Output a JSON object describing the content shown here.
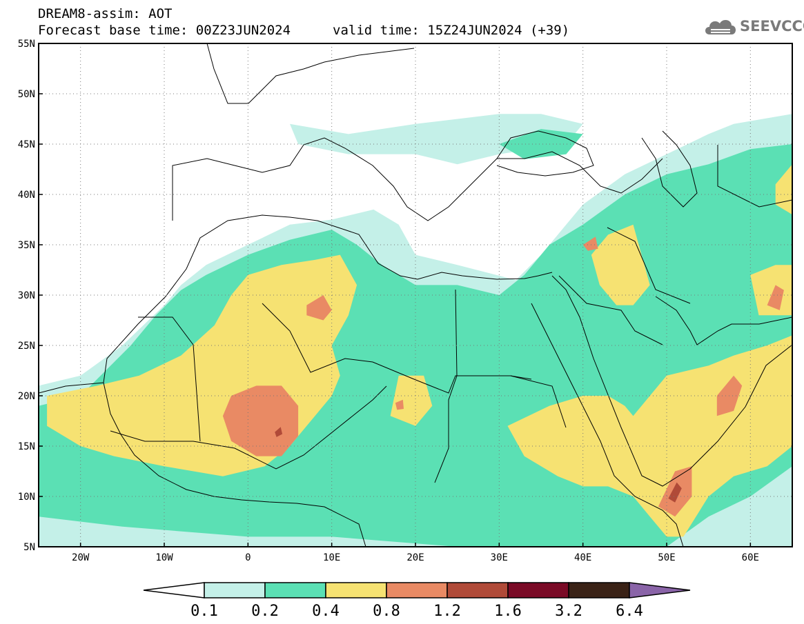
{
  "header": {
    "line1": "DREAM8-assim: AOT",
    "line2": "Forecast base time: 00Z23JUN2024",
    "valid": "valid time: 15Z24JUN2024 (+39)"
  },
  "logo": {
    "text": "SEEVCCC",
    "icon": "cloud-icon"
  },
  "map": {
    "lon_range": [
      -25,
      65
    ],
    "lat_range": [
      5,
      55
    ],
    "lat_ticks": [
      {
        "value": 55,
        "label": "55N"
      },
      {
        "value": 50,
        "label": "50N"
      },
      {
        "value": 45,
        "label": "45N"
      },
      {
        "value": 40,
        "label": "40N"
      },
      {
        "value": 35,
        "label": "35N"
      },
      {
        "value": 30,
        "label": "30N"
      },
      {
        "value": 25,
        "label": "25N"
      },
      {
        "value": 20,
        "label": "20N"
      },
      {
        "value": 15,
        "label": "15N"
      },
      {
        "value": 10,
        "label": "10N"
      },
      {
        "value": 5,
        "label": "5N"
      }
    ],
    "lon_ticks": [
      {
        "value": -20,
        "label": "20W"
      },
      {
        "value": -10,
        "label": "10W"
      },
      {
        "value": 0,
        "label": "0"
      },
      {
        "value": 10,
        "label": "10E"
      },
      {
        "value": 20,
        "label": "20E"
      },
      {
        "value": 30,
        "label": "30E"
      },
      {
        "value": 40,
        "label": "40E"
      },
      {
        "value": 50,
        "label": "50E"
      },
      {
        "value": 60,
        "label": "60E"
      }
    ],
    "gridlines": "dotted"
  },
  "colorbar": {
    "levels": [
      "0.1",
      "0.2",
      "0.4",
      "0.8",
      "1.2",
      "1.6",
      "3.2",
      "6.4"
    ],
    "colors": [
      "#ffffff",
      "#c4f0e8",
      "#5be0b4",
      "#f6e272",
      "#e98a64",
      "#b04a38",
      "#7a0a26",
      "#3a2216",
      "#8a64a8"
    ]
  },
  "aot_regions": [
    {
      "level": 1,
      "poly": [
        [
          -25,
          21
        ],
        [
          -20,
          22
        ],
        [
          -15,
          25
        ],
        [
          -10,
          29
        ],
        [
          -8,
          31
        ],
        [
          -5,
          33
        ],
        [
          0,
          35
        ],
        [
          5,
          37
        ],
        [
          10,
          37.5
        ],
        [
          15,
          38.5
        ],
        [
          18,
          37
        ],
        [
          20,
          34
        ],
        [
          25,
          33
        ],
        [
          32,
          31.5
        ],
        [
          35,
          34
        ],
        [
          38,
          37
        ],
        [
          40,
          39
        ],
        [
          45,
          42
        ],
        [
          50,
          44
        ],
        [
          55,
          46
        ],
        [
          58,
          47
        ],
        [
          65,
          48
        ],
        [
          65,
          5
        ],
        [
          -25,
          5
        ]
      ]
    },
    {
      "level": 1,
      "poly": [
        [
          5,
          47
        ],
        [
          12,
          46
        ],
        [
          20,
          47
        ],
        [
          30,
          48
        ],
        [
          35,
          48
        ],
        [
          40,
          47
        ],
        [
          38,
          45
        ],
        [
          30,
          44
        ],
        [
          25,
          43
        ],
        [
          20,
          44
        ],
        [
          12,
          44
        ],
        [
          6,
          45
        ]
      ]
    },
    {
      "level": 2,
      "poly": [
        [
          -25,
          19
        ],
        [
          -20,
          20
        ],
        [
          -14,
          25
        ],
        [
          -11,
          28
        ],
        [
          -8,
          30.5
        ],
        [
          -5,
          32
        ],
        [
          0,
          34
        ],
        [
          5,
          35.5
        ],
        [
          10,
          36.5
        ],
        [
          13,
          35
        ],
        [
          16,
          33
        ],
        [
          20,
          31
        ],
        [
          25,
          31
        ],
        [
          30,
          30
        ],
        [
          33,
          32
        ],
        [
          36,
          35
        ],
        [
          40,
          37
        ],
        [
          45,
          40
        ],
        [
          50,
          42
        ],
        [
          55,
          43
        ],
        [
          60,
          44.5
        ],
        [
          65,
          45
        ],
        [
          65,
          13
        ],
        [
          60,
          10
        ],
        [
          55,
          8
        ],
        [
          50,
          5
        ],
        [
          25,
          5
        ],
        [
          10,
          6
        ],
        [
          0,
          6
        ],
        [
          -15,
          7
        ],
        [
          -25,
          8
        ]
      ]
    },
    {
      "level": 2,
      "poly": [
        [
          30,
          45
        ],
        [
          35,
          46.5
        ],
        [
          40,
          46
        ],
        [
          38,
          44
        ],
        [
          33,
          43.5
        ]
      ]
    },
    {
      "level": 3,
      "poly": [
        [
          -24,
          20
        ],
        [
          -18,
          21
        ],
        [
          -13,
          22
        ],
        [
          -8,
          24
        ],
        [
          -4,
          27
        ],
        [
          -2,
          30
        ],
        [
          0,
          32
        ],
        [
          4,
          33
        ],
        [
          8,
          33.5
        ],
        [
          11,
          34
        ],
        [
          13,
          31
        ],
        [
          12,
          28
        ],
        [
          10,
          25
        ],
        [
          11,
          22
        ],
        [
          10,
          20
        ],
        [
          8,
          18
        ],
        [
          5,
          15
        ],
        [
          2,
          13
        ],
        [
          -3,
          12
        ],
        [
          -10,
          13
        ],
        [
          -16,
          14
        ],
        [
          -20,
          15
        ],
        [
          -24,
          17
        ]
      ]
    },
    {
      "level": 3,
      "poly": [
        [
          36,
          19
        ],
        [
          40,
          20
        ],
        [
          43,
          20
        ],
        [
          45,
          19
        ],
        [
          46,
          18
        ],
        [
          48,
          20
        ],
        [
          50,
          22
        ],
        [
          55,
          23
        ],
        [
          58,
          24
        ],
        [
          62,
          25
        ],
        [
          65,
          26
        ],
        [
          65,
          15
        ],
        [
          62,
          13
        ],
        [
          58,
          12
        ],
        [
          55,
          10
        ],
        [
          52,
          6
        ],
        [
          50,
          6
        ],
        [
          48,
          8
        ],
        [
          46,
          10
        ],
        [
          43,
          11
        ],
        [
          40,
          11
        ],
        [
          37,
          12
        ],
        [
          33,
          14
        ],
        [
          31,
          17
        ]
      ]
    },
    {
      "level": 3,
      "poly": [
        [
          41,
          34
        ],
        [
          43,
          36
        ],
        [
          46,
          37
        ],
        [
          47,
          34
        ],
        [
          48,
          31
        ],
        [
          46,
          29
        ],
        [
          44,
          29
        ],
        [
          42,
          31
        ]
      ]
    },
    {
      "level": 3,
      "poly": [
        [
          60,
          32
        ],
        [
          63,
          33
        ],
        [
          65,
          33
        ],
        [
          65,
          28
        ],
        [
          61,
          28
        ]
      ]
    },
    {
      "level": 3,
      "poly": [
        [
          63,
          41
        ],
        [
          65,
          43
        ],
        [
          65,
          38
        ],
        [
          63,
          39
        ]
      ]
    },
    {
      "level": 3,
      "poly": [
        [
          18,
          22
        ],
        [
          21,
          22
        ],
        [
          22,
          19
        ],
        [
          20,
          17
        ],
        [
          17,
          18
        ]
      ]
    },
    {
      "level": 4,
      "poly": [
        [
          -2,
          20
        ],
        [
          1,
          21
        ],
        [
          4,
          21
        ],
        [
          6,
          19
        ],
        [
          6,
          16
        ],
        [
          4,
          14
        ],
        [
          1,
          14
        ],
        [
          -2,
          15.5
        ],
        [
          -3,
          18
        ]
      ]
    },
    {
      "level": 4,
      "poly": [
        [
          7,
          29
        ],
        [
          9,
          30
        ],
        [
          10,
          28.5
        ],
        [
          9,
          27.5
        ],
        [
          7,
          28
        ]
      ]
    },
    {
      "level": 4,
      "poly": [
        [
          56,
          20
        ],
        [
          58,
          22
        ],
        [
          59,
          21
        ],
        [
          58,
          18.5
        ],
        [
          56,
          18
        ]
      ]
    },
    {
      "level": 4,
      "poly": [
        [
          49,
          9
        ],
        [
          51,
          12.5
        ],
        [
          53,
          13
        ],
        [
          53,
          10
        ],
        [
          51,
          8
        ]
      ]
    },
    {
      "level": 4,
      "poly": [
        [
          62,
          29
        ],
        [
          63,
          31
        ],
        [
          64,
          30.5
        ],
        [
          63.5,
          28.5
        ]
      ]
    },
    {
      "level": 4,
      "poly": [
        [
          40,
          35
        ],
        [
          41.5,
          35.8
        ],
        [
          41.8,
          34.6
        ],
        [
          40.6,
          34.4
        ]
      ]
    },
    {
      "level": 4,
      "poly": [
        [
          17.6,
          19.3
        ],
        [
          18.5,
          19.6
        ],
        [
          18.6,
          18.7
        ],
        [
          17.8,
          18.6
        ]
      ]
    },
    {
      "level": 5,
      "poly": [
        [
          50.2,
          9.8
        ],
        [
          51.2,
          11.4
        ],
        [
          51.8,
          10.8
        ],
        [
          51,
          9.4
        ]
      ]
    },
    {
      "level": 5,
      "poly": [
        [
          3.2,
          16.4
        ],
        [
          3.9,
          16.9
        ],
        [
          4.1,
          16.2
        ],
        [
          3.4,
          15.9
        ]
      ]
    }
  ]
}
